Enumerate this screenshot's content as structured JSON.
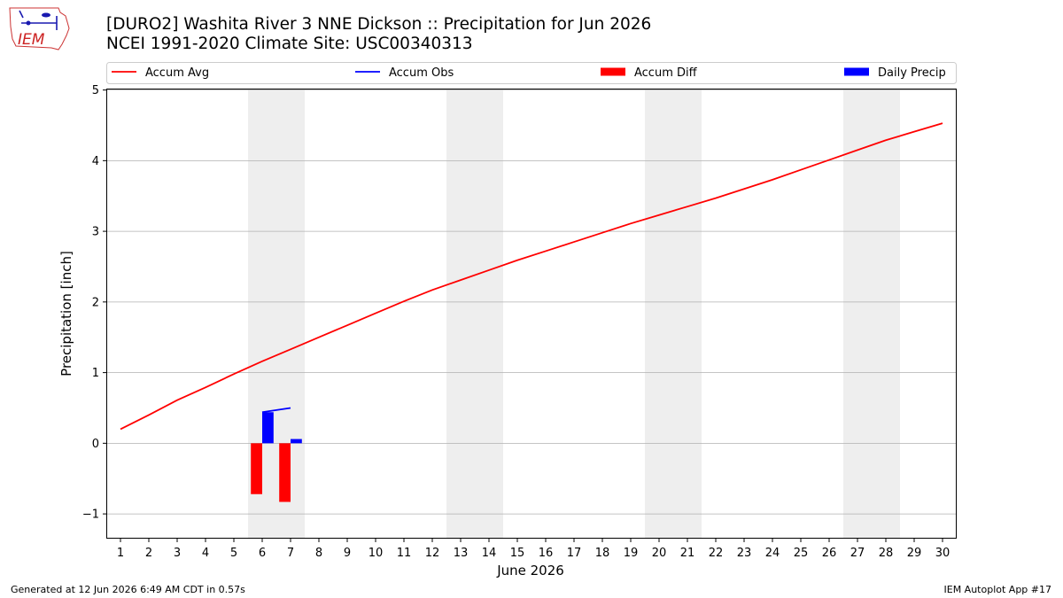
{
  "header": {
    "title": "[DURO2] Washita River 3 NNE Dickson :: Precipitation for Jun 2026",
    "subtitle": "NCEI 1991-2020 Climate Site: USC00340313",
    "logo_text": "IEM"
  },
  "footer": {
    "generated": "Generated at 12 Jun 2026 6:49 AM CDT in 0.57s",
    "app": "IEM Autoplot App #17"
  },
  "chart_data": {
    "type": "line",
    "title": "[DURO2] Washita River 3 NNE Dickson :: Precipitation for Jun 2026",
    "subtitle": "NCEI 1991-2020 Climate Site: USC00340313",
    "xlabel": "June 2026",
    "ylabel": "Precipitation [inch]",
    "xlim": [
      0.5,
      30.5
    ],
    "ylim": [
      -1.35,
      5.02
    ],
    "yticks": [
      -1,
      0,
      1,
      2,
      3,
      4,
      5
    ],
    "ytick_labels": [
      "−1",
      "0",
      "1",
      "2",
      "3",
      "4",
      "5"
    ],
    "xticks": [
      1,
      2,
      3,
      4,
      5,
      6,
      7,
      8,
      9,
      10,
      11,
      12,
      13,
      14,
      15,
      16,
      17,
      18,
      19,
      20,
      21,
      22,
      23,
      24,
      25,
      26,
      27,
      28,
      29,
      30
    ],
    "grid": "horizontal",
    "legend_position": "top",
    "weekend_shading": [
      [
        6,
        7
      ],
      [
        13,
        14
      ],
      [
        20,
        21
      ],
      [
        27,
        28
      ]
    ],
    "colors": {
      "avg": "#ff0000",
      "obs": "#0000ff",
      "diff": "#ff0000",
      "daily": "#0000ff",
      "shade": "#eeeeee",
      "grid": "#b0b0b0"
    },
    "legend": [
      {
        "label": "Accum Avg",
        "kind": "line",
        "color": "#ff0000"
      },
      {
        "label": "Accum Obs",
        "kind": "line",
        "color": "#0000ff"
      },
      {
        "label": "Accum Diff",
        "kind": "bar",
        "color": "#ff0000"
      },
      {
        "label": "Daily Precip",
        "kind": "bar",
        "color": "#0000ff"
      }
    ],
    "series": [
      {
        "name": "Accum Avg",
        "kind": "line",
        "x": [
          1,
          2,
          3,
          4,
          5,
          6,
          7,
          8,
          9,
          10,
          11,
          12,
          13,
          14,
          15,
          16,
          17,
          18,
          19,
          20,
          21,
          22,
          23,
          24,
          25,
          26,
          27,
          28,
          29,
          30
        ],
        "values": [
          0.2,
          0.4,
          0.61,
          0.79,
          0.98,
          1.16,
          1.33,
          1.5,
          1.67,
          1.84,
          2.01,
          2.17,
          2.31,
          2.45,
          2.59,
          2.72,
          2.85,
          2.98,
          3.11,
          3.23,
          3.35,
          3.47,
          3.6,
          3.73,
          3.87,
          4.01,
          4.15,
          4.29,
          4.41,
          4.53
        ]
      },
      {
        "name": "Accum Obs",
        "kind": "line",
        "x": [
          6,
          7
        ],
        "values": [
          0.44,
          0.5
        ]
      },
      {
        "name": "Accum Diff",
        "kind": "bar",
        "x": [
          6,
          7
        ],
        "values": [
          -0.72,
          -0.83
        ]
      },
      {
        "name": "Daily Precip",
        "kind": "bar",
        "x": [
          6,
          7
        ],
        "values": [
          0.44,
          0.06
        ]
      }
    ]
  }
}
